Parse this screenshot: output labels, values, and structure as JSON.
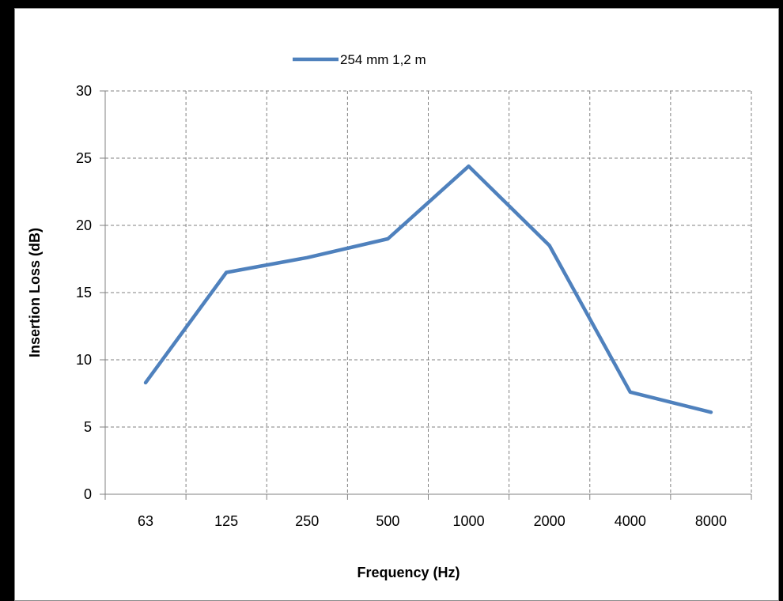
{
  "chart_data": {
    "type": "line",
    "title": "",
    "xlabel": "Frequency (Hz)",
    "ylabel": "Insertion Loss (dB)",
    "categories": [
      "63",
      "125",
      "250",
      "500",
      "1000",
      "2000",
      "4000",
      "8000"
    ],
    "series": [
      {
        "name": "254 mm 1,2 m",
        "values": [
          8.3,
          16.5,
          17.6,
          19.0,
          24.4,
          18.5,
          7.6,
          6.1
        ],
        "color": "#4F81BD"
      }
    ],
    "ylim": [
      0,
      30
    ],
    "yticks": [
      0,
      5,
      10,
      15,
      20,
      25,
      30
    ],
    "grid": true,
    "grid_style": "dashed",
    "legend_position": "top"
  }
}
